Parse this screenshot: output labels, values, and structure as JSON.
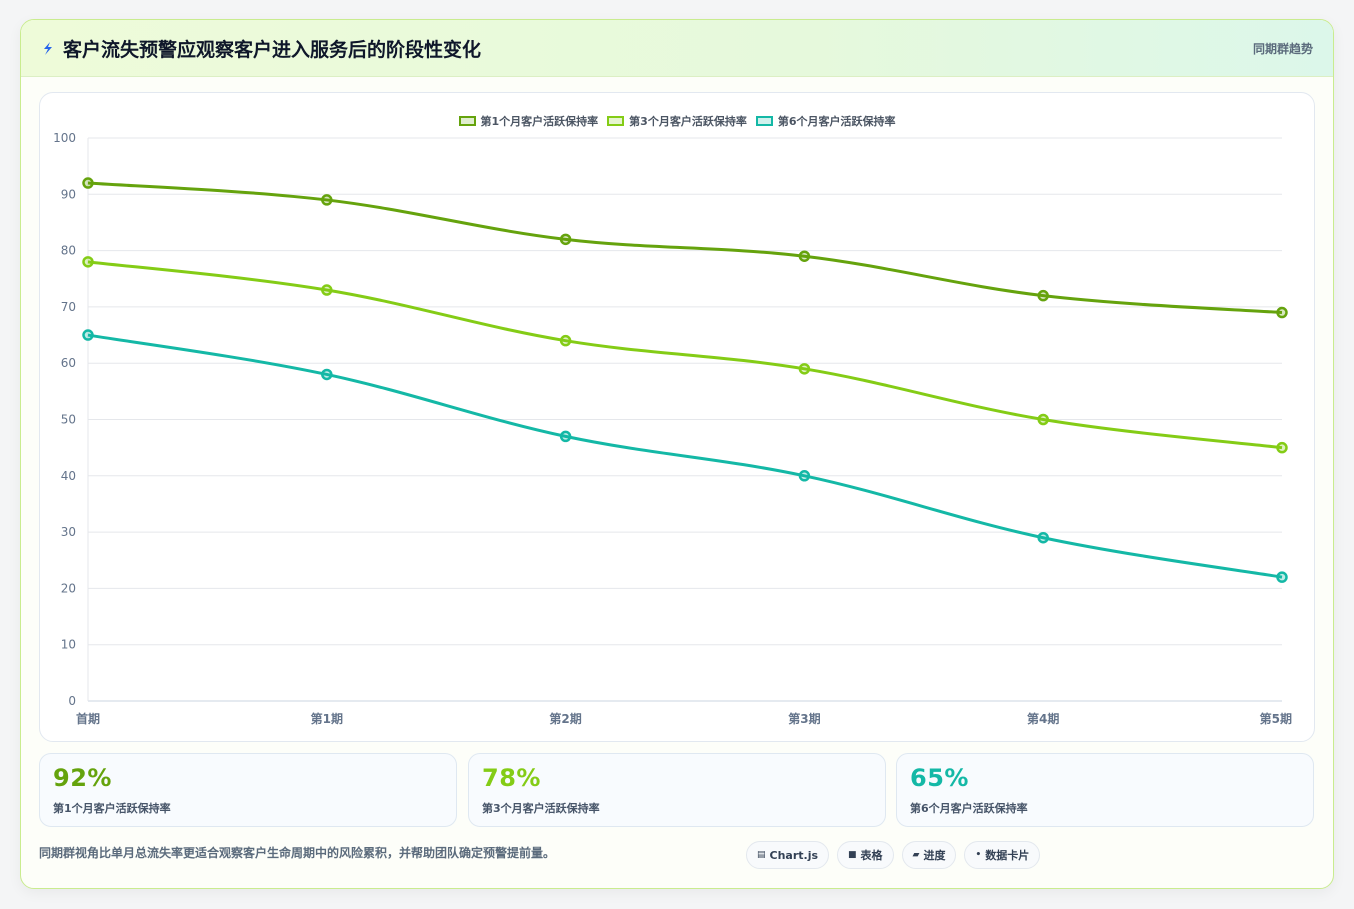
{
  "header": {
    "title": "客户流失预警应观察客户进入服务后的阶段性变化",
    "badge": "同期群趋势",
    "icon": "lightning-icon"
  },
  "colors": {
    "series1": "#65a30d",
    "series2": "#84cc16",
    "series3": "#14b8a6",
    "grid": "#e5e7eb"
  },
  "chart_data": {
    "type": "line",
    "title": "",
    "xlabel": "",
    "ylabel": "",
    "categories": [
      "首期",
      "第1期",
      "第2期",
      "第3期",
      "第4期",
      "第5期"
    ],
    "ylim": [
      0,
      100
    ],
    "yticks": [
      "0",
      "10",
      "20",
      "30",
      "40",
      "50",
      "60",
      "70",
      "80",
      "90",
      "100"
    ],
    "grid": true,
    "legend_position": "top-center",
    "series": [
      {
        "name": "第1个月客户活跃保持率",
        "values": [
          92,
          89,
          82,
          79,
          72,
          69
        ],
        "color": "#65a30d"
      },
      {
        "name": "第3个月客户活跃保持率",
        "values": [
          78,
          73,
          64,
          59,
          50,
          45
        ],
        "color": "#84cc16"
      },
      {
        "name": "第6个月客户活跃保持率",
        "values": [
          65,
          58,
          47,
          40,
          29,
          22
        ],
        "color": "#14b8a6"
      }
    ]
  },
  "stats": [
    {
      "value": "92%",
      "label": "第1个月客户活跃保持率",
      "color": "#65a30d"
    },
    {
      "value": "78%",
      "label": "第3个月客户活跃保持率",
      "color": "#84cc16"
    },
    {
      "value": "65%",
      "label": "第6个月客户活跃保持率",
      "color": "#14b8a6"
    }
  ],
  "footer": {
    "note": "同期群视角比单月总流失率更适合观察客户生命周期中的风险累积，并帮助团队确定预警提前量。",
    "tags": [
      {
        "icon": "chart-icon",
        "glyph": "▤",
        "label": "Chart.js"
      },
      {
        "icon": "table-icon",
        "glyph": "■",
        "label": "表格"
      },
      {
        "icon": "progress-icon",
        "glyph": "▰",
        "label": "进度"
      },
      {
        "icon": "card-icon",
        "glyph": "•",
        "label": "数据卡片"
      }
    ]
  }
}
